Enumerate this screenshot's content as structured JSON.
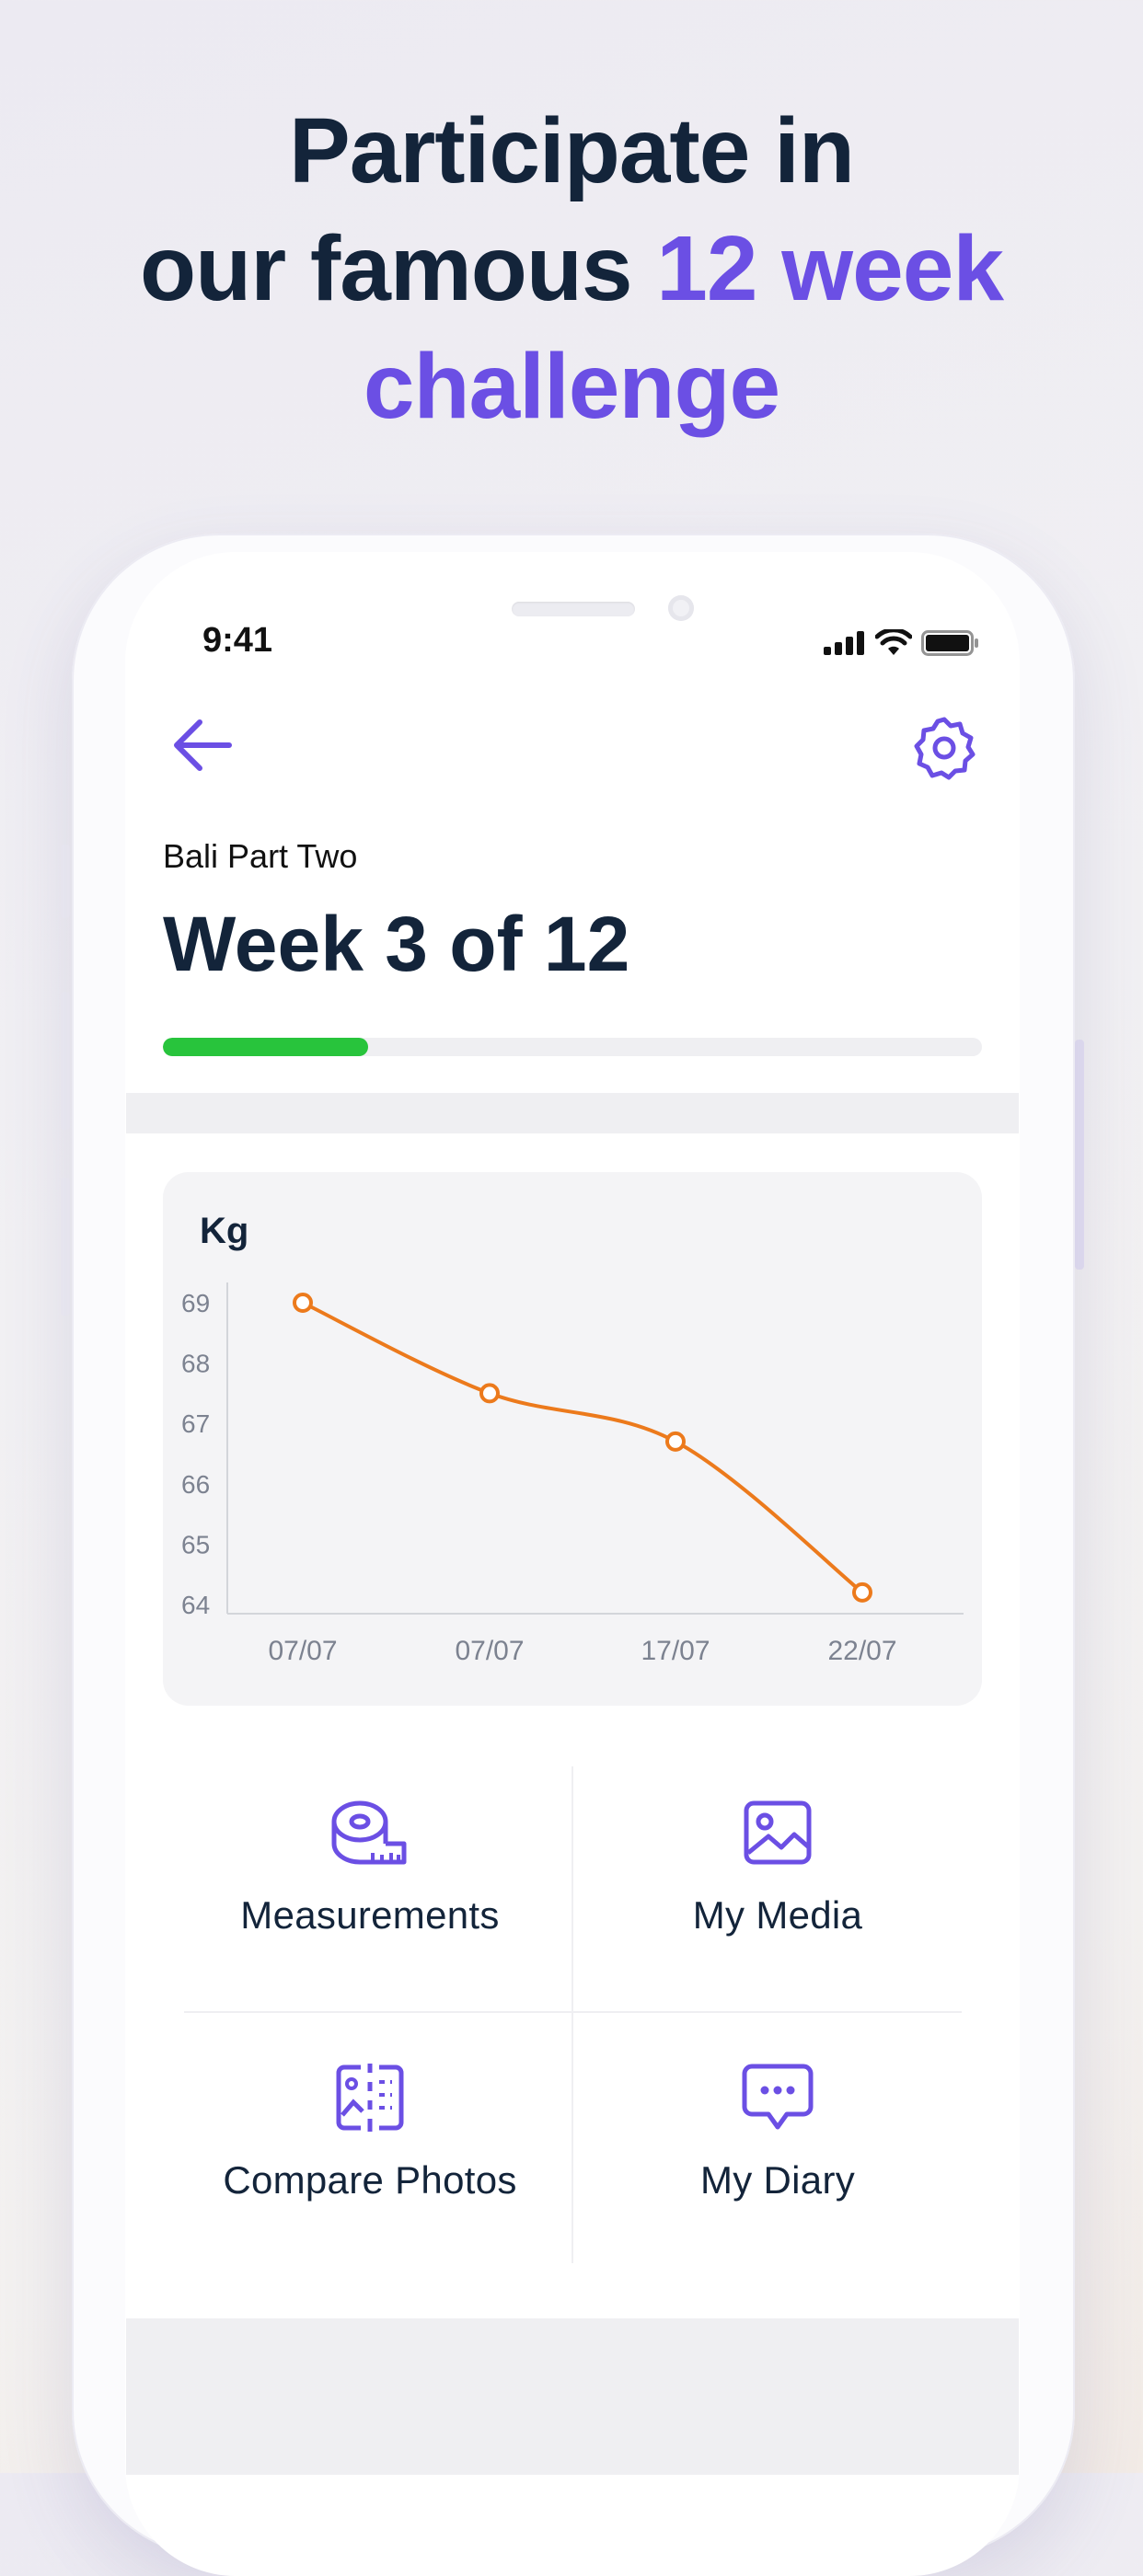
{
  "headline": {
    "line1": "Participate in",
    "line2_prefix": "our famous ",
    "line2_accent": "12 week",
    "line3_accent": "challenge"
  },
  "status_bar": {
    "time": "9:41"
  },
  "screen": {
    "subtitle": "Bali Part Two",
    "title": "Week 3 of 12",
    "progress": {
      "current_week": 3,
      "total_weeks": 12,
      "fraction": 0.25
    }
  },
  "chart_data": {
    "type": "line",
    "title": "Kg",
    "x": [
      "07/07",
      "07/07",
      "17/07",
      "22/07"
    ],
    "series": [
      {
        "values": [
          69,
          67.5,
          66.7,
          64.2
        ]
      }
    ],
    "ylim": [
      64,
      69
    ],
    "yticks": [
      69,
      68,
      67,
      66,
      65,
      64
    ],
    "grid": false
  },
  "tiles": [
    {
      "label": "Measurements",
      "icon": "tape-measure-icon"
    },
    {
      "label": "My Media",
      "icon": "image-icon"
    },
    {
      "label": "Compare Photos",
      "icon": "compare-icon"
    },
    {
      "label": "My Diary",
      "icon": "chat-bubble-icon"
    }
  ],
  "colors": {
    "accent": "#6b4fe4",
    "dark_text": "#13243a",
    "progress": "#28c43c",
    "chart_line": "#ec7a1c"
  }
}
